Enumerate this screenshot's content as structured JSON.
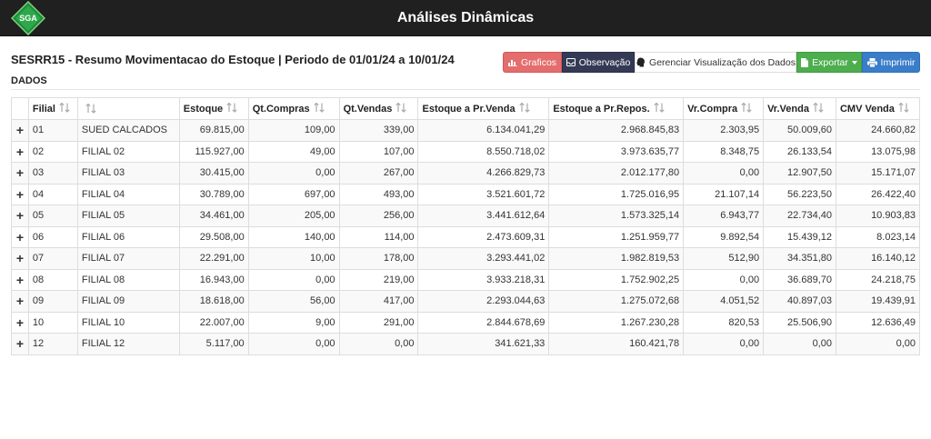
{
  "header": {
    "logo_text": "SGA",
    "app_title": "Análises Dinâmicas"
  },
  "report": {
    "title": "SESRR15 - Resumo Movimentacao do Estoque | Periodo de 01/01/24 a 10/01/24",
    "section_label": "DADOS"
  },
  "toolbar": {
    "graficos_label": "Graficos",
    "observacao_label": "Observação",
    "gerenciar_label": "Gerenciar Visualização dos Dados",
    "exportar_label": "Exportar",
    "imprimir_label": "Imprimir"
  },
  "colors": {
    "graficos": "#e46d6d",
    "observacao": "#343a55",
    "exportar": "#4cae4c",
    "imprimir": "#3a7dc8",
    "topbar": "#202020"
  },
  "table": {
    "columns": [
      "Filial",
      "",
      "Estoque",
      "Qt.Compras",
      "Qt.Vendas",
      "Estoque a Pr.Venda",
      "Estoque a Pr.Repos.",
      "Vr.Compra",
      "Vr.Venda",
      "CMV Venda"
    ],
    "rows": [
      [
        "01",
        "SUED CALCADOS",
        "69.815,00",
        "109,00",
        "339,00",
        "6.134.041,29",
        "2.968.845,83",
        "2.303,95",
        "50.009,60",
        "24.660,82"
      ],
      [
        "02",
        "FILIAL 02",
        "115.927,00",
        "49,00",
        "107,00",
        "8.550.718,02",
        "3.973.635,77",
        "8.348,75",
        "26.133,54",
        "13.075,98"
      ],
      [
        "03",
        "FILIAL 03",
        "30.415,00",
        "0,00",
        "267,00",
        "4.266.829,73",
        "2.012.177,80",
        "0,00",
        "12.907,50",
        "15.171,07"
      ],
      [
        "04",
        "FILIAL 04",
        "30.789,00",
        "697,00",
        "493,00",
        "3.521.601,72",
        "1.725.016,95",
        "21.107,14",
        "56.223,50",
        "26.422,40"
      ],
      [
        "05",
        "FILIAL 05",
        "34.461,00",
        "205,00",
        "256,00",
        "3.441.612,64",
        "1.573.325,14",
        "6.943,77",
        "22.734,40",
        "10.903,83"
      ],
      [
        "06",
        "FILIAL 06",
        "29.508,00",
        "140,00",
        "114,00",
        "2.473.609,31",
        "1.251.959,77",
        "9.892,54",
        "15.439,12",
        "8.023,14"
      ],
      [
        "07",
        "FILIAL 07",
        "22.291,00",
        "10,00",
        "178,00",
        "3.293.441,02",
        "1.982.819,53",
        "512,90",
        "34.351,80",
        "16.140,12"
      ],
      [
        "08",
        "FILIAL 08",
        "16.943,00",
        "0,00",
        "219,00",
        "3.933.218,31",
        "1.752.902,25",
        "0,00",
        "36.689,70",
        "24.218,75"
      ],
      [
        "09",
        "FILIAL 09",
        "18.618,00",
        "56,00",
        "417,00",
        "2.293.044,63",
        "1.275.072,68",
        "4.051,52",
        "40.897,03",
        "19.439,91"
      ],
      [
        "10",
        "FILIAL 10",
        "22.007,00",
        "9,00",
        "291,00",
        "2.844.678,69",
        "1.267.230,28",
        "820,53",
        "25.506,90",
        "12.636,49"
      ],
      [
        "12",
        "FILIAL 12",
        "5.117,00",
        "0,00",
        "0,00",
        "341.621,33",
        "160.421,78",
        "0,00",
        "0,00",
        "0,00"
      ]
    ]
  }
}
